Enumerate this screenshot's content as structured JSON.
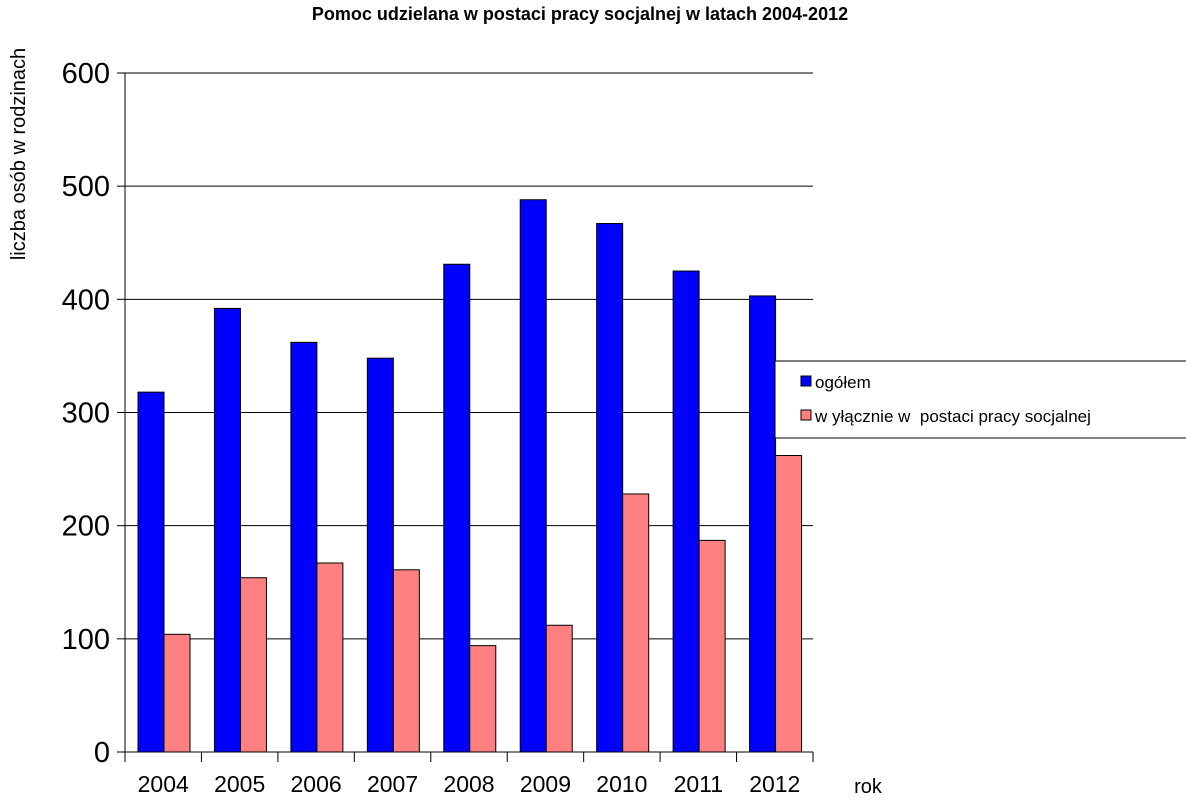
{
  "chart_data": {
    "type": "bar",
    "title": "Pomoc udzielana w postaci pracy socjalnej w latach 2004-2012",
    "xlabel": "rok",
    "ylabel": "liczba osób w rodzinach",
    "categories": [
      "2004",
      "2005",
      "2006",
      "2007",
      "2008",
      "2009",
      "2010",
      "2011",
      "2012"
    ],
    "series": [
      {
        "name": "ogółem",
        "color": "#0000ff",
        "values": [
          318,
          392,
          362,
          348,
          431,
          488,
          467,
          425,
          403
        ]
      },
      {
        "name": "w yłącznie w  postaci pracy socjalnej",
        "color": "#ff8080",
        "values": [
          104,
          154,
          167,
          161,
          94,
          112,
          228,
          187,
          262
        ]
      }
    ],
    "ylim": [
      0,
      600
    ],
    "yticks": [
      0,
      100,
      200,
      300,
      400,
      500,
      600
    ],
    "grid": true,
    "legend_position": "right"
  }
}
